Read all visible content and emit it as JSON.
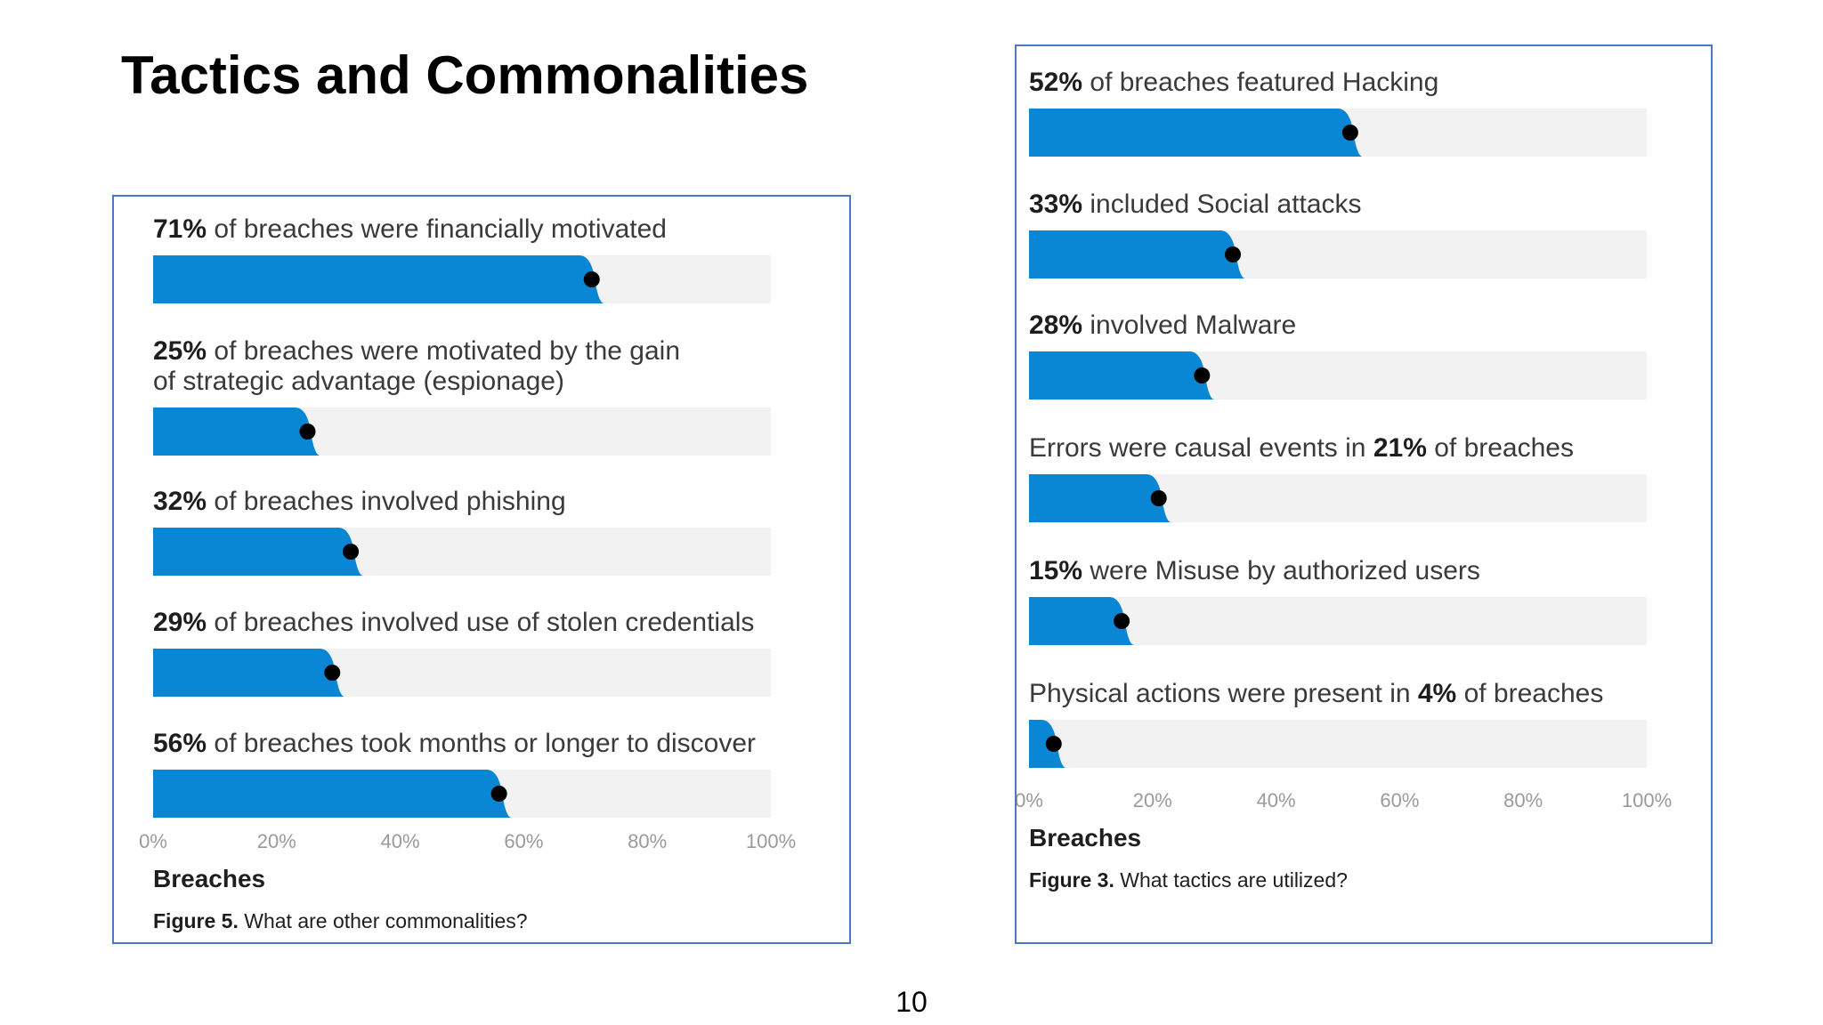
{
  "slide": {
    "title": "Tactics and Commonalities",
    "page_number": "10"
  },
  "colors": {
    "bar": "#0a87d4",
    "track": "#f2f2f2",
    "marker": "#000000",
    "panel_border": "#4a78c2"
  },
  "chart_data": [
    {
      "type": "bar",
      "orientation": "horizontal",
      "xlabel": "Breaches",
      "xlim": [
        0,
        100
      ],
      "ticks": [
        "0%",
        "20%",
        "40%",
        "60%",
        "80%",
        "100%"
      ],
      "caption_bold": "Figure 5.",
      "caption_text": "What are other commonalities?",
      "bars": [
        {
          "value": 71,
          "label_lines": [
            [
              {
                "t": "71%",
                "b": true
              },
              {
                "t": " of breaches were financially motivated",
                "b": false
              }
            ]
          ]
        },
        {
          "value": 25,
          "label_lines": [
            [
              {
                "t": "25%",
                "b": true
              },
              {
                "t": " of breaches were motivated by the gain",
                "b": false
              }
            ],
            [
              {
                "t": "of strategic advantage (espionage)",
                "b": false
              }
            ]
          ]
        },
        {
          "value": 32,
          "label_lines": [
            [
              {
                "t": "32%",
                "b": true
              },
              {
                "t": " of breaches involved phishing",
                "b": false
              }
            ]
          ]
        },
        {
          "value": 29,
          "label_lines": [
            [
              {
                "t": "29%",
                "b": true
              },
              {
                "t": " of breaches involved use of stolen credentials",
                "b": false
              }
            ]
          ]
        },
        {
          "value": 56,
          "label_lines": [
            [
              {
                "t": "56%",
                "b": true
              },
              {
                "t": " of breaches took months or longer to discover",
                "b": false
              }
            ]
          ]
        }
      ]
    },
    {
      "type": "bar",
      "orientation": "horizontal",
      "xlabel": "Breaches",
      "xlim": [
        0,
        100
      ],
      "ticks": [
        "0%",
        "20%",
        "40%",
        "60%",
        "80%",
        "100%"
      ],
      "caption_bold": "Figure 3.",
      "caption_text": "What tactics are utilized?",
      "bars": [
        {
          "value": 52,
          "label_lines": [
            [
              {
                "t": "52%",
                "b": true
              },
              {
                "t": " of breaches featured Hacking",
                "b": false
              }
            ]
          ]
        },
        {
          "value": 33,
          "label_lines": [
            [
              {
                "t": "33%",
                "b": true
              },
              {
                "t": " included Social attacks",
                "b": false
              }
            ]
          ]
        },
        {
          "value": 28,
          "label_lines": [
            [
              {
                "t": "28%",
                "b": true
              },
              {
                "t": " involved Malware",
                "b": false
              }
            ]
          ]
        },
        {
          "value": 21,
          "label_lines": [
            [
              {
                "t": "Errors were causal events in ",
                "b": false
              },
              {
                "t": "21%",
                "b": true
              },
              {
                "t": " of breaches",
                "b": false
              }
            ]
          ]
        },
        {
          "value": 15,
          "label_lines": [
            [
              {
                "t": "15%",
                "b": true
              },
              {
                "t": " were Misuse by authorized users",
                "b": false
              }
            ]
          ]
        },
        {
          "value": 4,
          "label_lines": [
            [
              {
                "t": "Physical actions were present in ",
                "b": false
              },
              {
                "t": "4%",
                "b": true
              },
              {
                "t": " of breaches",
                "b": false
              }
            ]
          ]
        }
      ]
    }
  ]
}
